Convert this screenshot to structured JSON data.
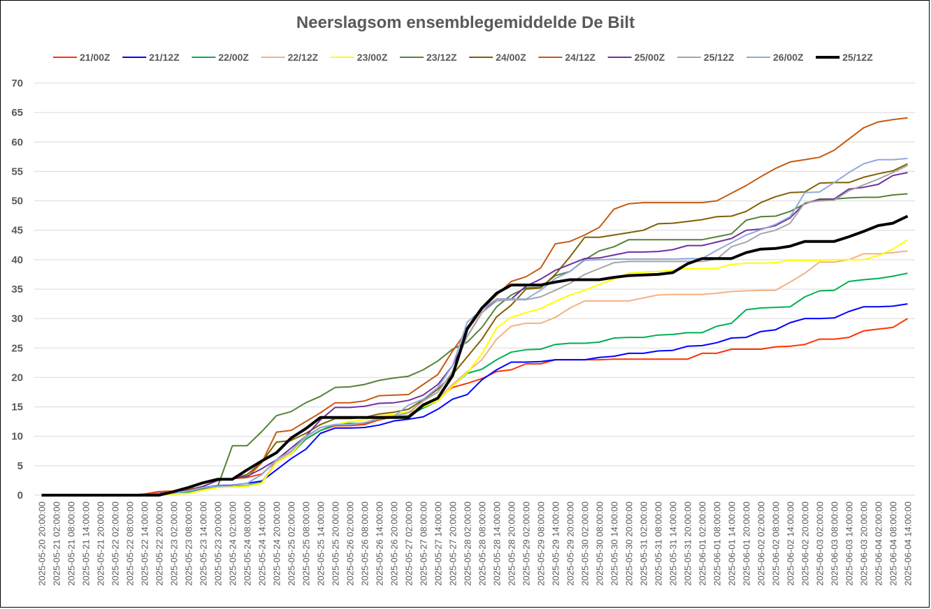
{
  "chart_data": {
    "type": "line",
    "title": "Neerslagsom ensemblegemiddelde De Bilt",
    "xlabel": "",
    "ylabel": "",
    "ylim": [
      0,
      70
    ],
    "yticks": [
      0,
      5,
      10,
      15,
      20,
      25,
      30,
      35,
      40,
      45,
      50,
      55,
      60,
      65,
      70
    ],
    "grid": "horizontal",
    "legend_position": "top",
    "categories": [
      "2025-05-20 20:00:00",
      "2025-05-21 02:00:00",
      "2025-05-21 08:00:00",
      "2025-05-21 14:00:00",
      "2025-05-21 20:00:00",
      "2025-05-22 02:00:00",
      "2025-05-22 08:00:00",
      "2025-05-22 14:00:00",
      "2025-05-22 20:00:00",
      "2025-05-23 02:00:00",
      "2025-05-23 08:00:00",
      "2025-05-23 14:00:00",
      "2025-05-23 20:00:00",
      "2025-05-24 02:00:00",
      "2025-05-24 08:00:00",
      "2025-05-24 14:00:00",
      "2025-05-24 20:00:00",
      "2025-05-25 02:00:00",
      "2025-05-25 08:00:00",
      "2025-05-25 14:00:00",
      "2025-05-25 20:00:00",
      "2025-05-26 02:00:00",
      "2025-05-26 08:00:00",
      "2025-05-26 14:00:00",
      "2025-05-26 20:00:00",
      "2025-05-27 02:00:00",
      "2025-05-27 08:00:00",
      "2025-05-27 14:00:00",
      "2025-05-27 20:00:00",
      "2025-05-28 02:00:00",
      "2025-05-28 08:00:00",
      "2025-05-28 14:00:00",
      "2025-05-28 20:00:00",
      "2025-05-29 02:00:00",
      "2025-05-29 08:00:00",
      "2025-05-29 14:00:00",
      "2025-05-29 20:00:00",
      "2025-05-30 02:00:00",
      "2025-05-30 08:00:00",
      "2025-05-30 14:00:00",
      "2025-05-30 20:00:00",
      "2025-05-31 02:00:00",
      "2025-05-31 08:00:00",
      "2025-05-31 14:00:00",
      "2025-05-31 20:00:00",
      "2025-06-01 02:00:00",
      "2025-06-01 08:00:00",
      "2025-06-01 14:00:00",
      "2025-06-01 20:00:00",
      "2025-06-02 02:00:00",
      "2025-06-02 08:00:00",
      "2025-06-02 14:00:00",
      "2025-06-02 20:00:00",
      "2025-06-03 02:00:00",
      "2025-06-03 08:00:00",
      "2025-06-03 14:00:00",
      "2025-06-03 20:00:00",
      "2025-06-04 02:00:00",
      "2025-06-04 08:00:00",
      "2025-06-04 14:00:00"
    ],
    "series": [
      {
        "name": "21/00Z",
        "color": "#FF3300",
        "values": [
          0,
          0,
          0,
          0,
          0,
          0,
          0,
          0.2,
          0.6,
          0.7,
          0.9,
          1.5,
          2.5,
          2.8,
          3.0,
          3.6,
          5.8,
          7.5,
          9.5,
          11.0,
          11.8,
          11.8,
          12.0,
          12.8,
          13.3,
          13.5,
          15.5,
          16.5,
          18.3,
          19.0,
          19.8,
          21.0,
          21.3,
          22.3,
          22.3,
          23.0,
          23.0,
          23.0,
          23.0,
          23.1,
          23.1,
          23.1,
          23.1,
          23.1,
          23.1,
          24.1,
          24.1,
          24.8,
          24.8,
          24.8,
          25.2,
          25.3,
          25.6,
          26.5,
          26.5,
          26.8,
          27.9,
          28.2,
          28.5,
          30.0
        ]
      },
      {
        "name": "21/12Z",
        "color": "#0000FF",
        "values": [
          0,
          0,
          0,
          0,
          0,
          0,
          0,
          0.1,
          0.3,
          0.5,
          0.6,
          1.3,
          1.6,
          1.7,
          2.0,
          2.4,
          4.3,
          6.2,
          7.8,
          10.5,
          11.4,
          11.4,
          11.5,
          11.9,
          12.6,
          12.9,
          13.3,
          14.6,
          16.3,
          17.1,
          19.6,
          21.3,
          22.6,
          22.6,
          22.7,
          23.0,
          23.0,
          23.0,
          23.4,
          23.6,
          24.1,
          24.1,
          24.5,
          24.6,
          25.3,
          25.4,
          25.9,
          26.7,
          26.8,
          27.8,
          28.1,
          29.3,
          30.0,
          30.0,
          30.1,
          31.2,
          32.0,
          32.0,
          32.1,
          32.5
        ]
      },
      {
        "name": "22/00Z",
        "color": "#00B050",
        "values": [
          0,
          0,
          0,
          0,
          0,
          0,
          0,
          0.1,
          0.2,
          0.3,
          0.5,
          1.0,
          1.5,
          1.5,
          1.6,
          2.2,
          5.6,
          7.0,
          9.5,
          11.0,
          12.0,
          12.2,
          12.2,
          13.0,
          13.3,
          13.5,
          14.8,
          16.0,
          18.5,
          20.7,
          21.4,
          23.0,
          24.3,
          24.7,
          24.8,
          25.6,
          25.8,
          25.8,
          26.0,
          26.7,
          26.8,
          26.8,
          27.2,
          27.3,
          27.6,
          27.6,
          28.7,
          29.2,
          31.5,
          31.8,
          31.9,
          32.0,
          33.7,
          34.7,
          34.8,
          36.3,
          36.6,
          36.8,
          37.2,
          37.7
        ]
      },
      {
        "name": "22/12Z",
        "color": "#F4B183",
        "values": [
          0,
          0,
          0,
          0,
          0,
          0,
          0,
          0,
          0.1,
          0.2,
          0.3,
          0.9,
          1.3,
          1.4,
          1.5,
          2.1,
          5.8,
          7.2,
          9.8,
          11.5,
          12.0,
          12.0,
          12.3,
          13.2,
          13.5,
          14.0,
          15.2,
          16.3,
          18.8,
          21.0,
          23.0,
          26.5,
          28.7,
          29.2,
          29.2,
          30.2,
          31.8,
          33.0,
          33.0,
          33.0,
          33.0,
          33.5,
          34.0,
          34.1,
          34.1,
          34.1,
          34.3,
          34.6,
          34.7,
          34.8,
          34.8,
          36.2,
          37.7,
          39.6,
          39.6,
          40.0,
          41.0,
          41.0,
          41.2,
          41.5
        ]
      },
      {
        "name": "23/00Z",
        "color": "#FFFF00",
        "values": [
          0,
          0,
          0,
          0,
          0,
          0,
          0,
          0,
          0.1,
          0.2,
          0.3,
          0.8,
          1.3,
          1.4,
          1.5,
          2.0,
          5.5,
          7.0,
          9.9,
          11.5,
          12.0,
          12.5,
          12.8,
          13.5,
          13.7,
          14.2,
          15.0,
          16.0,
          18.5,
          20.8,
          24.0,
          28.4,
          30.2,
          31.0,
          31.7,
          32.9,
          34.0,
          34.8,
          35.8,
          36.7,
          37.7,
          37.9,
          38.0,
          38.2,
          38.5,
          38.5,
          38.5,
          39.2,
          39.4,
          39.4,
          39.5,
          39.9,
          39.9,
          39.9,
          40.0,
          40.0,
          40.0,
          40.7,
          41.8,
          43.4
        ]
      },
      {
        "name": "23/12Z",
        "color": "#548235",
        "values": [
          0,
          0,
          0,
          0,
          0,
          0,
          0,
          0.1,
          0.2,
          0.4,
          0.7,
          1.2,
          1.5,
          8.4,
          8.4,
          10.8,
          13.5,
          14.2,
          15.7,
          16.8,
          18.3,
          18.4,
          18.8,
          19.5,
          19.9,
          20.2,
          21.3,
          22.8,
          24.8,
          26.0,
          28.5,
          32.0,
          34.0,
          35.2,
          35.3,
          37.3,
          38.0,
          40.0,
          41.5,
          42.2,
          43.4,
          43.4,
          43.4,
          43.4,
          43.4,
          43.4,
          43.9,
          44.4,
          46.7,
          47.3,
          47.4,
          48.2,
          49.5,
          50.3,
          50.3,
          50.5,
          50.6,
          50.6,
          51.0,
          51.2
        ]
      },
      {
        "name": "24/00Z",
        "color": "#7F6000",
        "values": [
          0,
          0,
          0,
          0,
          0,
          0,
          0,
          0.1,
          0.2,
          0.4,
          0.8,
          1.5,
          2.5,
          2.8,
          3.5,
          5.6,
          9.0,
          9.3,
          10.5,
          12.0,
          13.0,
          13.0,
          13.2,
          13.8,
          14.1,
          14.6,
          16.2,
          18.0,
          20.5,
          23.5,
          26.5,
          30.3,
          32.3,
          35.0,
          35.2,
          37.5,
          40.5,
          43.8,
          43.8,
          44.2,
          44.6,
          45.0,
          46.1,
          46.2,
          46.5,
          46.8,
          47.3,
          47.4,
          48.2,
          49.7,
          50.7,
          51.4,
          51.5,
          53.0,
          53.1,
          53.1,
          54.0,
          54.6,
          55.1,
          56.3
        ]
      },
      {
        "name": "24/12Z",
        "color": "#C55A11",
        "values": [
          0,
          0,
          0,
          0,
          0,
          0,
          0,
          0.1,
          0.3,
          0.6,
          1.0,
          2.2,
          2.7,
          2.8,
          3.0,
          5.5,
          10.7,
          11.0,
          12.5,
          14.0,
          15.7,
          15.7,
          16.0,
          16.9,
          17.0,
          17.1,
          18.8,
          20.5,
          24.5,
          28.0,
          31.5,
          34.0,
          36.3,
          37.1,
          38.6,
          42.7,
          43.1,
          44.2,
          45.5,
          48.6,
          49.5,
          49.7,
          49.7,
          49.7,
          49.7,
          49.7,
          50.0,
          51.3,
          52.6,
          54.1,
          55.5,
          56.6,
          57.0,
          57.4,
          58.6,
          60.5,
          62.4,
          63.4,
          63.8,
          64.1
        ]
      },
      {
        "name": "25/00Z",
        "color": "#7030A0",
        "values": [
          0,
          0,
          0,
          0,
          0,
          0,
          0,
          0.1,
          0.3,
          0.5,
          0.8,
          1.5,
          2.5,
          2.8,
          3.2,
          4.5,
          6.0,
          8.0,
          10.0,
          12.8,
          14.9,
          14.9,
          15.1,
          15.6,
          15.7,
          16.1,
          17.0,
          18.8,
          22.0,
          27.0,
          31.0,
          33.3,
          33.3,
          35.5,
          36.7,
          38.2,
          39.2,
          40.2,
          40.3,
          40.8,
          41.3,
          41.3,
          41.4,
          41.7,
          42.4,
          42.4,
          43.0,
          43.6,
          45.0,
          45.2,
          45.8,
          47.1,
          49.6,
          50.2,
          50.3,
          52.0,
          52.3,
          52.8,
          54.3,
          54.8
        ]
      },
      {
        "name": "25/12Z",
        "color": "#A5A5A5",
        "values": [
          0,
          0,
          0,
          0,
          0,
          0,
          0,
          0.1,
          0.2,
          0.4,
          0.7,
          1.3,
          1.5,
          1.6,
          2.0,
          3.5,
          6.0,
          7.5,
          9.9,
          11.5,
          12.0,
          12.0,
          12.3,
          13.0,
          13.4,
          14.0,
          16.0,
          17.5,
          21.0,
          27.0,
          31.0,
          33.0,
          33.2,
          33.2,
          33.7,
          34.8,
          36.0,
          37.5,
          38.5,
          39.5,
          39.7,
          39.7,
          39.7,
          39.7,
          39.7,
          39.7,
          40.1,
          42.2,
          43.0,
          44.4,
          45.0,
          46.2,
          49.7,
          50.0,
          50.1,
          51.7,
          52.7,
          53.7,
          54.8,
          56.0
        ]
      },
      {
        "name": "26/00Z",
        "color": "#8FAADC",
        "values": [
          0,
          0,
          0,
          0,
          0,
          0,
          0,
          0.1,
          0.2,
          0.4,
          0.7,
          1.3,
          1.5,
          1.6,
          2.0,
          3.5,
          6.0,
          7.5,
          10.0,
          11.5,
          12.0,
          12.0,
          12.3,
          13.0,
          13.4,
          15.3,
          16.3,
          18.3,
          22.0,
          29.4,
          31.5,
          33.3,
          33.3,
          33.3,
          34.8,
          36.8,
          38.0,
          39.9,
          40.0,
          40.1,
          40.1,
          40.1,
          40.1,
          40.1,
          40.2,
          40.2,
          41.6,
          42.9,
          44.2,
          45.1,
          46.0,
          47.3,
          51.4,
          51.5,
          53.1,
          54.8,
          56.3,
          57.0,
          57.0,
          57.2
        ]
      },
      {
        "name": "25/12Z",
        "color": "#000000",
        "emphasis": "bold",
        "values": [
          0,
          0,
          0,
          0,
          0,
          0,
          0,
          0,
          0,
          0.6,
          1.3,
          2.1,
          2.7,
          2.7,
          4.3,
          5.8,
          7.2,
          9.7,
          11.3,
          13.2,
          13.2,
          13.2,
          13.2,
          13.2,
          13.2,
          13.2,
          15.3,
          16.5,
          20.3,
          28.3,
          31.8,
          34.3,
          35.7,
          35.7,
          35.7,
          36.2,
          36.6,
          36.6,
          36.6,
          37.0,
          37.3,
          37.4,
          37.5,
          37.8,
          39.3,
          40.2,
          40.2,
          40.2,
          41.2,
          41.8,
          41.9,
          42.3,
          43.1,
          43.1,
          43.1,
          43.9,
          44.8,
          45.8,
          46.2,
          47.4
        ]
      }
    ]
  }
}
